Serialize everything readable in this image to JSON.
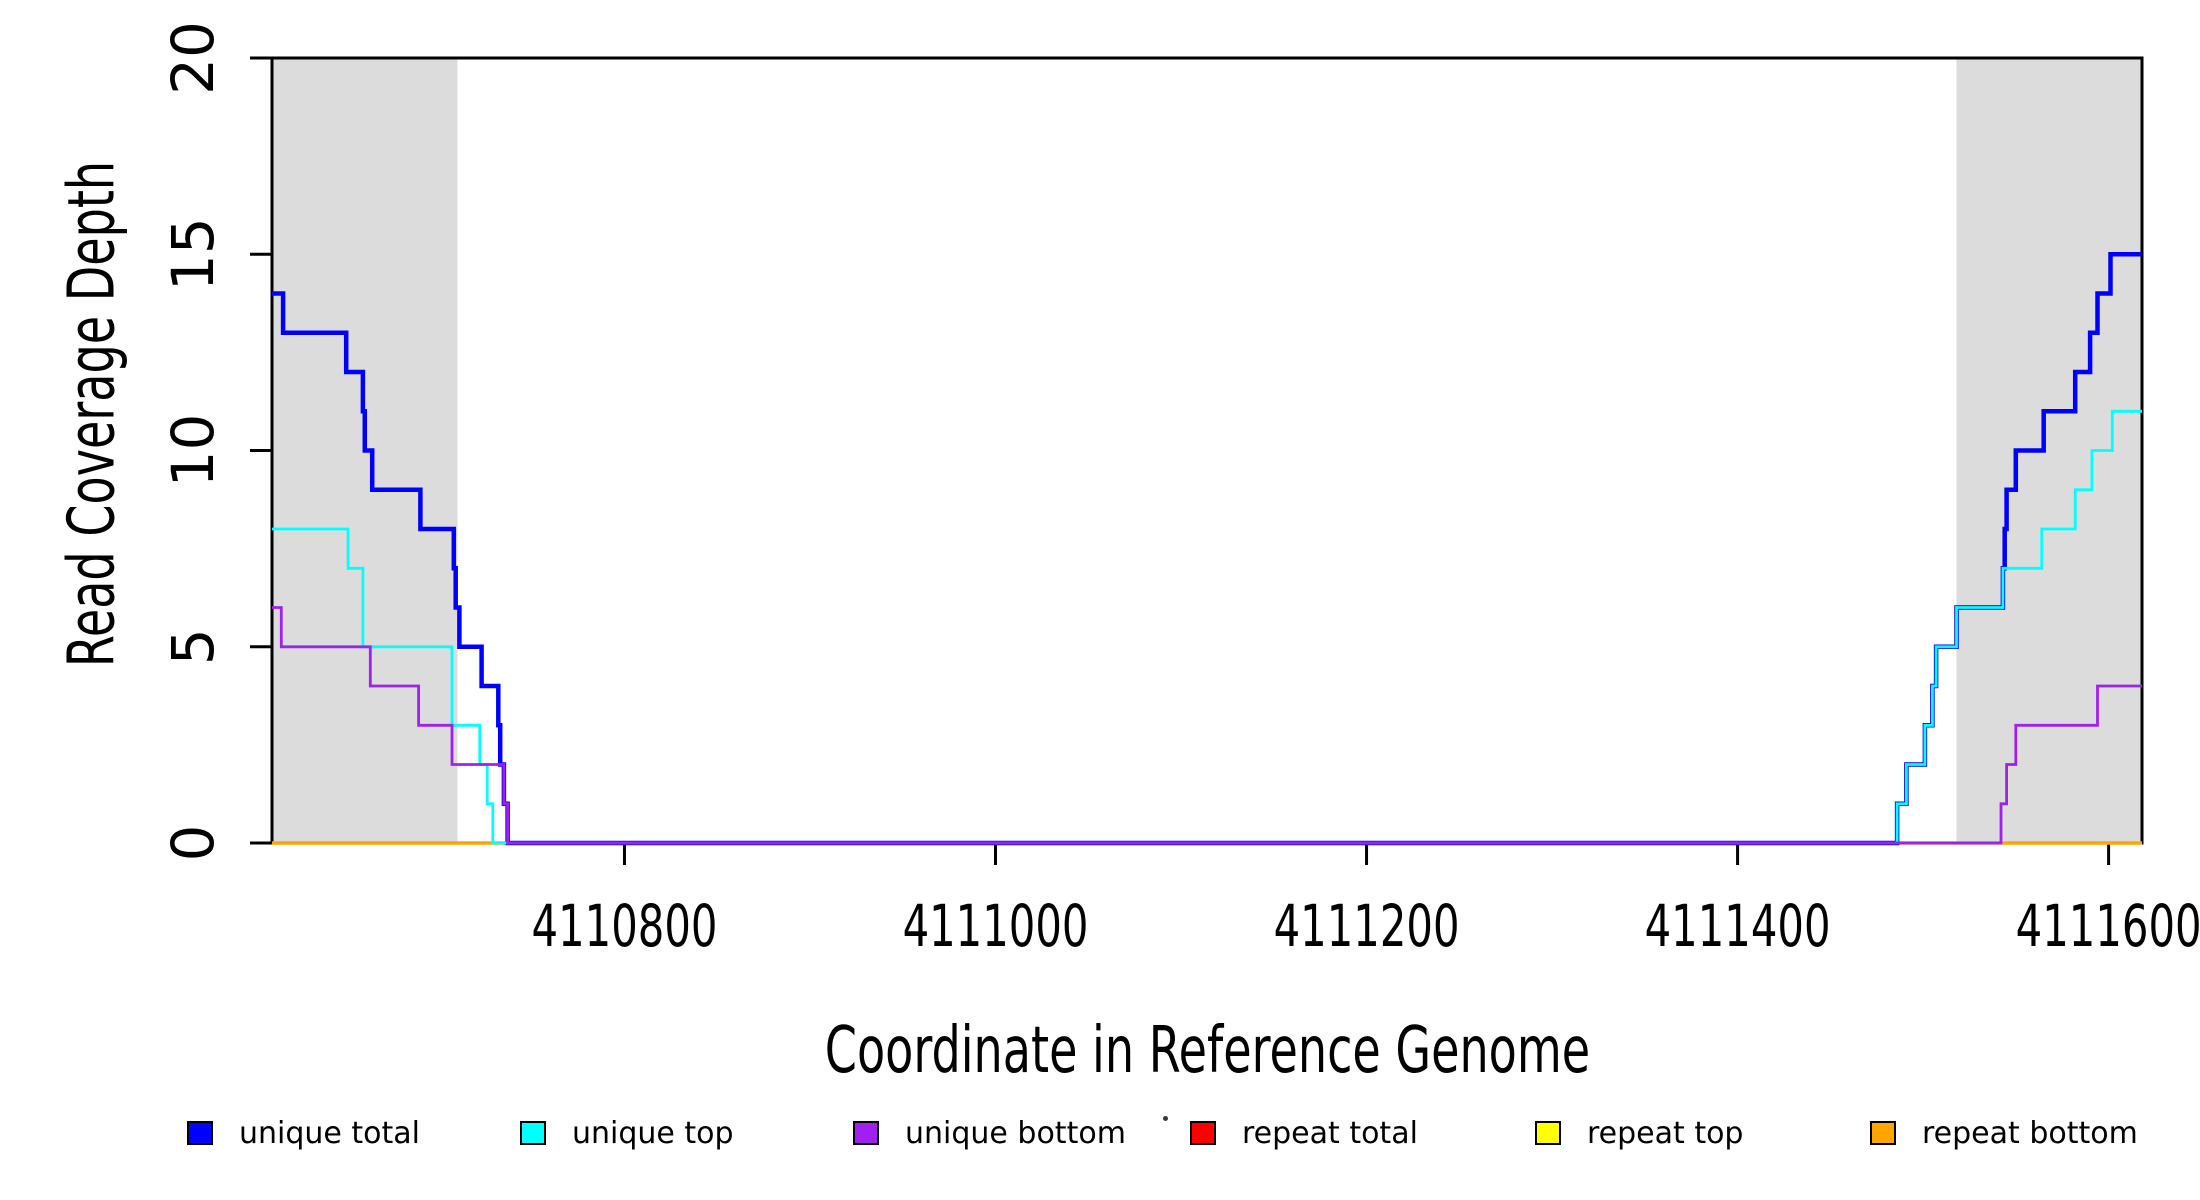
{
  "figure": {
    "background": "#FFFFFF",
    "axis_color": "#000000"
  },
  "chart_data": {
    "type": "line",
    "subtype": "step",
    "title": "",
    "xlabel": "Coordinate in Reference Genome",
    "ylabel": "Read Coverage Depth",
    "x_domain": [
      4110610,
      4111618
    ],
    "ylim": [
      0,
      20
    ],
    "x_ticks": [
      4110800,
      4111000,
      4111200,
      4111400,
      4111600
    ],
    "y_ticks": [
      0,
      5,
      10,
      15,
      20
    ],
    "grid": false,
    "legend_position": "bottom",
    "shaded_regions": [
      {
        "from": 4110610,
        "to": 4110710,
        "color": "#DCDCDC"
      },
      {
        "from": 4111518,
        "to": 4111618,
        "color": "#DCDCDC"
      }
    ],
    "series": [
      {
        "name": "repeat total",
        "color": "#FF0000",
        "width": 2.5,
        "points": [
          [
            4110610,
            0
          ]
        ]
      },
      {
        "name": "repeat top",
        "color": "#FFFF00",
        "width": 2.5,
        "points": [
          [
            4110610,
            0
          ]
        ]
      },
      {
        "name": "repeat bottom",
        "color": "#FFA500",
        "width": 3.5,
        "points": [
          [
            4110610,
            0
          ]
        ]
      },
      {
        "name": "unique total",
        "color": "#0000FF",
        "width": 4.5,
        "points": [
          [
            4110610,
            14
          ],
          [
            4110616,
            13
          ],
          [
            4110650,
            12
          ],
          [
            4110659,
            11
          ],
          [
            4110660,
            10
          ],
          [
            4110664,
            9
          ],
          [
            4110690,
            8
          ],
          [
            4110708,
            7
          ],
          [
            4110709,
            6
          ],
          [
            4110711,
            5
          ],
          [
            4110723,
            4
          ],
          [
            4110732,
            3
          ],
          [
            4110733,
            2
          ],
          [
            4110735,
            1
          ],
          [
            4110737,
            0
          ],
          [
            4111486,
            1
          ],
          [
            4111491,
            2
          ],
          [
            4111501,
            3
          ],
          [
            4111505,
            4
          ],
          [
            4111507,
            5
          ],
          [
            4111518,
            6
          ],
          [
            4111543,
            7
          ],
          [
            4111544,
            8
          ],
          [
            4111545,
            9
          ],
          [
            4111550,
            10
          ],
          [
            4111565,
            11
          ],
          [
            4111582,
            12
          ],
          [
            4111590,
            13
          ],
          [
            4111594,
            14
          ],
          [
            4111601,
            15
          ]
        ]
      },
      {
        "name": "unique top",
        "color": "#00FFFF",
        "width": 2.8,
        "points": [
          [
            4110610,
            8
          ],
          [
            4110651,
            7
          ],
          [
            4110659,
            5
          ],
          [
            4110707,
            3
          ],
          [
            4110722,
            2
          ],
          [
            4110726,
            1
          ],
          [
            4110729,
            0
          ],
          [
            4111486,
            1
          ],
          [
            4111491,
            2
          ],
          [
            4111501,
            3
          ],
          [
            4111505,
            4
          ],
          [
            4111507,
            5
          ],
          [
            4111518,
            6
          ],
          [
            4111543,
            7
          ],
          [
            4111564,
            8
          ],
          [
            4111582,
            9
          ],
          [
            4111591,
            10
          ],
          [
            4111602,
            11
          ]
        ]
      },
      {
        "name": "unique bottom",
        "color": "#A020F0",
        "width": 2.8,
        "points": [
          [
            4110610,
            6
          ],
          [
            4110615,
            5
          ],
          [
            4110663,
            4
          ],
          [
            4110689,
            3
          ],
          [
            4110707,
            2
          ],
          [
            4110735,
            1
          ],
          [
            4110737,
            0
          ],
          [
            4111542,
            1
          ],
          [
            4111545,
            2
          ],
          [
            4111550,
            3
          ],
          [
            4111594,
            4
          ]
        ]
      }
    ]
  },
  "legend": {
    "items": [
      {
        "label": "unique total",
        "color": "#0000FF"
      },
      {
        "label": "unique top",
        "color": "#00FFFF"
      },
      {
        "label": "unique bottom",
        "color": "#A020F0"
      },
      {
        "label": "repeat total",
        "color": "#FF0000"
      },
      {
        "label": "repeat top",
        "color": "#FFFF00"
      },
      {
        "label": "repeat bottom",
        "color": "#FFA500"
      }
    ]
  }
}
